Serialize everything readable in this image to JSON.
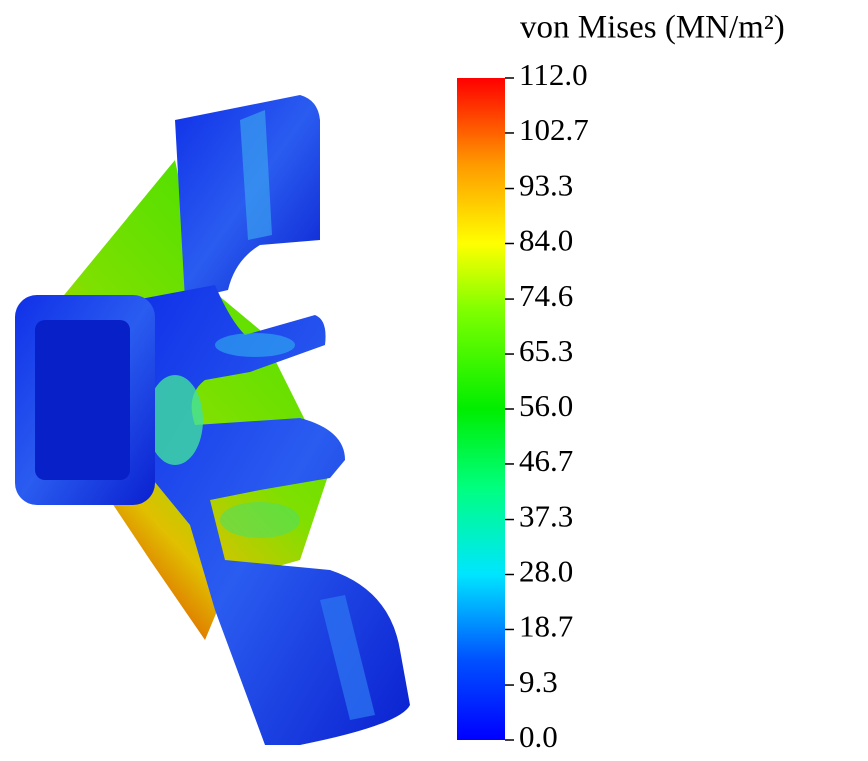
{
  "chart_data": {
    "type": "colorbar",
    "title": "von Mises (MN/m²)",
    "ylim": [
      0,
      112
    ],
    "yticks": [
      {
        "value": 0,
        "label": "0.0"
      },
      9.3,
      18.7,
      {
        "value": 28,
        "label": "28.0"
      },
      37.3,
      46.7,
      {
        "value": 56,
        "label": "56.0"
      },
      65.3,
      74.6,
      {
        "value": 84,
        "label": "84.0"
      },
      93.3,
      102.7,
      {
        "value": 112,
        "label": "112.0"
      }
    ]
  }
}
